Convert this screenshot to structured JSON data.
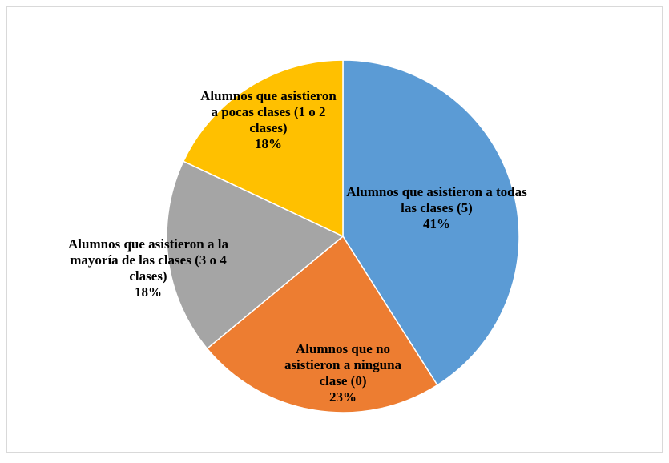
{
  "chart_data": {
    "type": "pie",
    "categories": [
      "Alumnos que asistieron a todas las clases (5)",
      "Alumnos que no asistieron a ninguna clase (0)",
      "Alumnos que asistieron a la mayoría de las clases (3 o 4 clases)",
      "Alumnos que asistieron a pocas clases (1 o 2 clases)"
    ],
    "values": [
      41,
      23,
      18,
      18
    ],
    "value_labels": [
      "41%",
      "23%",
      "18%",
      "18%"
    ],
    "colors": [
      "#5b9bd5",
      "#ed7d31",
      "#a5a5a5",
      "#ffc000"
    ]
  }
}
